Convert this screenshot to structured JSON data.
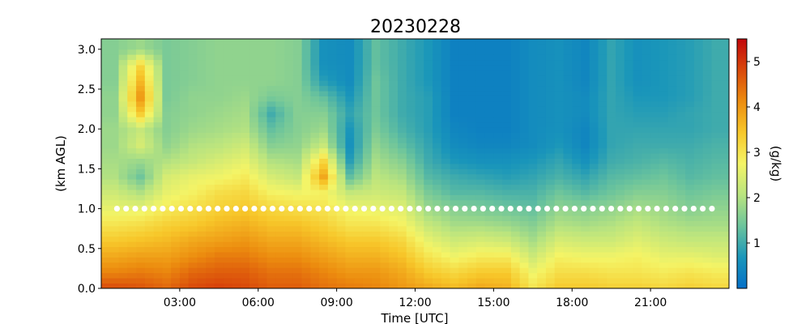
{
  "chart_data": {
    "type": "heatmap",
    "title": "20230228",
    "xlabel": "Time [UTC]",
    "ylabel": "(km AGL)",
    "colorbar_label": "(g/kg)",
    "x_range_hours": [
      0.0,
      24.0
    ],
    "y_range_km": [
      0.0,
      3.13
    ],
    "x_ticks": [
      {
        "value": 3,
        "label": "03:00"
      },
      {
        "value": 6,
        "label": "06:00"
      },
      {
        "value": 9,
        "label": "09:00"
      },
      {
        "value": 12,
        "label": "12:00"
      },
      {
        "value": 15,
        "label": "15:00"
      },
      {
        "value": 18,
        "label": "18:00"
      },
      {
        "value": 21,
        "label": "21:00"
      }
    ],
    "y_ticks": [
      {
        "value": 0.0,
        "label": "0.0"
      },
      {
        "value": 0.5,
        "label": "0.5"
      },
      {
        "value": 1.0,
        "label": "1.0"
      },
      {
        "value": 1.5,
        "label": "1.5"
      },
      {
        "value": 2.0,
        "label": "2.0"
      },
      {
        "value": 2.5,
        "label": "2.5"
      },
      {
        "value": 3.0,
        "label": "3.0"
      }
    ],
    "colorbar_range": [
      0.0,
      5.5
    ],
    "colorbar_ticks": [
      {
        "value": 1,
        "label": "1"
      },
      {
        "value": 2,
        "label": "2"
      },
      {
        "value": 3,
        "label": "3"
      },
      {
        "value": 4,
        "label": "4"
      },
      {
        "value": 5,
        "label": "5"
      }
    ],
    "colorscale": [
      "#0570c7",
      "#1a96ba",
      "#6cc49c",
      "#b9e47f",
      "#f4f466",
      "#f7c72a",
      "#ec8c0f",
      "#d9480b",
      "#c2060b"
    ],
    "reference_line": {
      "y": 1.0,
      "style": "white dotted markers"
    },
    "time_steps": 72,
    "height_levels": 48,
    "levels_km": [
      0.0,
      0.2,
      0.4,
      0.6,
      0.8,
      1.0,
      1.2,
      1.4,
      1.6,
      1.8,
      2.0,
      2.2,
      2.4,
      2.6,
      2.8,
      3.0
    ],
    "profile_columns_hours": [
      0.5,
      1.5,
      2.5,
      3.5,
      4.5,
      5.5,
      6.5,
      7.5,
      8.5,
      9.5,
      10.5,
      11.5,
      12.5,
      13.5,
      14.5,
      15.5,
      16.5,
      17.5,
      18.5,
      19.5,
      20.5,
      21.5,
      22.5,
      23.5
    ],
    "mixing_ratio_g_per_kg": [
      [
        4.8,
        4.2,
        3.8,
        3.4,
        3.0,
        2.6,
        2.3,
        2.0,
        1.9,
        1.8,
        1.8,
        1.7,
        1.7,
        1.6,
        1.6,
        1.6
      ],
      [
        4.7,
        4.3,
        3.9,
        3.5,
        3.1,
        2.6,
        2.0,
        1.4,
        1.8,
        2.4,
        2.2,
        3.4,
        4.0,
        3.6,
        3.2,
        1.8
      ],
      [
        4.5,
        4.2,
        3.9,
        3.6,
        3.3,
        2.9,
        2.6,
        2.4,
        2.0,
        1.7,
        1.6,
        1.6,
        1.5,
        1.5,
        1.5,
        1.5
      ],
      [
        4.8,
        4.5,
        4.1,
        3.8,
        3.4,
        3.1,
        2.8,
        2.6,
        2.2,
        2.0,
        1.8,
        1.7,
        1.7,
        1.6,
        1.6,
        1.6
      ],
      [
        4.9,
        4.6,
        4.3,
        3.9,
        3.6,
        3.3,
        3.1,
        2.7,
        2.4,
        2.1,
        1.9,
        1.8,
        1.7,
        1.7,
        1.7,
        1.7
      ],
      [
        4.8,
        4.6,
        4.3,
        4.0,
        3.7,
        3.4,
        3.2,
        2.9,
        2.6,
        2.3,
        2.0,
        1.9,
        1.8,
        1.7,
        1.7,
        1.7
      ],
      [
        4.6,
        4.4,
        4.1,
        3.8,
        3.5,
        3.2,
        2.8,
        2.4,
        2.0,
        1.6,
        1.3,
        1.0,
        1.5,
        1.7,
        1.7,
        1.7
      ],
      [
        4.6,
        4.4,
        4.1,
        3.8,
        3.5,
        3.1,
        2.7,
        2.2,
        1.9,
        1.7,
        1.6,
        1.6,
        1.6,
        1.6,
        1.6,
        1.6
      ],
      [
        4.4,
        4.2,
        3.9,
        3.6,
        3.3,
        3.0,
        2.8,
        3.8,
        3.2,
        2.2,
        1.8,
        1.6,
        1.3,
        0.8,
        0.6,
        0.6
      ],
      [
        4.3,
        4.0,
        3.7,
        3.4,
        3.0,
        2.7,
        2.2,
        1.3,
        0.8,
        0.6,
        0.7,
        0.9,
        0.7,
        0.5,
        0.5,
        0.5
      ],
      [
        4.2,
        4.0,
        3.7,
        3.4,
        3.0,
        2.6,
        2.3,
        2.1,
        1.9,
        1.7,
        1.5,
        1.4,
        1.4,
        1.4,
        1.3,
        1.3
      ],
      [
        4.0,
        3.8,
        3.5,
        3.2,
        2.8,
        2.5,
        2.2,
        1.9,
        1.6,
        1.3,
        1.1,
        1.0,
        1.0,
        1.0,
        1.0,
        1.0
      ],
      [
        3.8,
        3.4,
        3.0,
        2.6,
        2.2,
        1.8,
        1.5,
        1.2,
        1.0,
        0.9,
        0.8,
        0.8,
        0.8,
        0.7,
        0.7,
        0.7
      ],
      [
        3.6,
        3.2,
        2.7,
        2.3,
        1.9,
        1.6,
        1.2,
        1.0,
        0.7,
        0.5,
        0.4,
        0.3,
        0.3,
        0.3,
        0.3,
        0.3
      ],
      [
        3.8,
        3.4,
        2.9,
        2.4,
        1.9,
        1.5,
        1.2,
        0.9,
        0.6,
        0.4,
        0.3,
        0.3,
        0.3,
        0.3,
        0.3,
        0.3
      ],
      [
        3.7,
        3.4,
        2.9,
        2.3,
        1.8,
        1.4,
        1.1,
        0.8,
        0.6,
        0.4,
        0.3,
        0.3,
        0.3,
        0.3,
        0.3,
        0.3
      ],
      [
        3.0,
        2.7,
        2.3,
        1.9,
        1.6,
        1.3,
        1.1,
        0.9,
        0.7,
        0.5,
        0.5,
        0.5,
        0.5,
        0.5,
        0.5,
        0.5
      ],
      [
        3.4,
        3.1,
        2.8,
        2.4,
        2.0,
        1.7,
        1.4,
        1.1,
        0.9,
        0.7,
        0.6,
        0.6,
        0.6,
        0.6,
        0.6,
        0.6
      ],
      [
        3.4,
        3.1,
        2.7,
        2.3,
        1.9,
        1.6,
        1.2,
        0.9,
        0.6,
        0.4,
        0.4,
        0.5,
        0.5,
        0.4,
        0.4,
        0.4
      ],
      [
        3.3,
        3.0,
        2.7,
        2.3,
        2.0,
        1.7,
        1.4,
        1.2,
        1.0,
        0.9,
        0.9,
        0.9,
        0.9,
        0.9,
        0.9,
        0.9
      ],
      [
        3.3,
        3.0,
        2.8,
        2.5,
        2.2,
        1.9,
        1.6,
        1.3,
        1.1,
        1.0,
        0.9,
        0.8,
        0.7,
        0.6,
        0.6,
        0.6
      ],
      [
        3.2,
        2.9,
        2.6,
        2.3,
        2.0,
        1.8,
        1.6,
        1.4,
        1.2,
        1.0,
        0.9,
        0.8,
        0.7,
        0.7,
        0.7,
        0.7
      ],
      [
        3.3,
        3.0,
        2.6,
        2.2,
        1.9,
        1.6,
        1.4,
        1.2,
        1.1,
        1.0,
        0.9,
        0.9,
        0.8,
        0.8,
        0.8,
        0.8
      ],
      [
        3.2,
        2.9,
        2.5,
        2.2,
        1.9,
        1.7,
        1.5,
        1.3,
        1.2,
        1.1,
        1.0,
        1.0,
        1.0,
        1.0,
        1.0,
        1.0
      ]
    ]
  }
}
